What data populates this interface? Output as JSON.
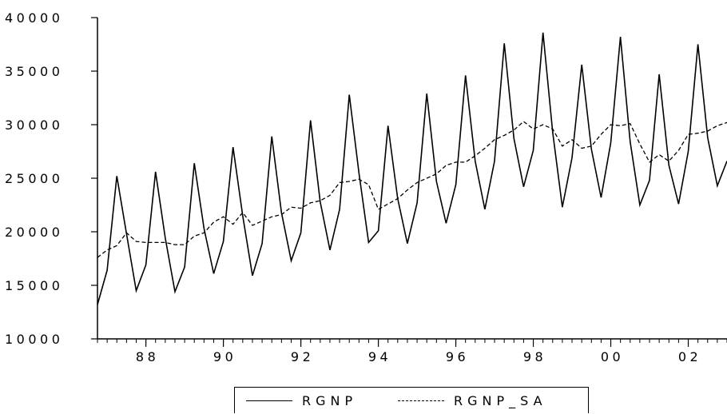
{
  "chart_data": {
    "type": "line",
    "title": "",
    "xlabel": "",
    "ylabel": "",
    "ylim": [
      10000,
      40000
    ],
    "yticks": [
      10000,
      15000,
      20000,
      25000,
      30000,
      35000,
      40000
    ],
    "ytick_labels": [
      "10000",
      "15000",
      "20000",
      "25000",
      "30000",
      "35000",
      "40000"
    ],
    "x_start": 1986.75,
    "x_step": 0.25,
    "xlim": [
      1986.75,
      2003.0
    ],
    "xtick_positions": [
      1988,
      1990,
      1992,
      1994,
      1996,
      1998,
      2000,
      2002
    ],
    "xtick_labels": [
      "88",
      "90",
      "92",
      "94",
      "96",
      "98",
      "00",
      "02"
    ],
    "legend_position": "bottom-center",
    "grid": false,
    "series": [
      {
        "name": "RGNP",
        "style": "solid",
        "color": "#000000",
        "values": [
          13200,
          16400,
          25200,
          19800,
          14500,
          16900,
          25600,
          19400,
          14400,
          16700,
          26400,
          20300,
          16100,
          19100,
          27900,
          21500,
          15900,
          18900,
          28900,
          21800,
          17300,
          19900,
          30400,
          22800,
          18300,
          22100,
          32800,
          25500,
          19000,
          20100,
          29900,
          23100,
          18900,
          22700,
          32900,
          24700,
          20800,
          24400,
          34600,
          26600,
          22100,
          26600,
          37600,
          28700,
          24200,
          27600,
          38600,
          29300,
          22300,
          26900,
          35600,
          27700,
          23200,
          28300,
          38200,
          28400,
          22500,
          24800,
          34700,
          26200,
          22600,
          27500,
          37500,
          28800,
          24300,
          26600
        ]
      },
      {
        "name": "RGNP_SA",
        "style": "dashed",
        "color": "#000000",
        "values": [
          17600,
          18300,
          18700,
          19900,
          19100,
          19000,
          19000,
          19000,
          18800,
          18800,
          19600,
          19900,
          20900,
          21400,
          20700,
          21800,
          20600,
          21000,
          21400,
          21600,
          22300,
          22200,
          22700,
          22900,
          23400,
          24600,
          24700,
          24900,
          24400,
          22100,
          22600,
          23100,
          23900,
          24600,
          25000,
          25400,
          26200,
          26500,
          26500,
          27100,
          27800,
          28600,
          29000,
          29500,
          30300,
          29600,
          30000,
          29600,
          28000,
          28600,
          27800,
          28000,
          29100,
          30000,
          29900,
          30100,
          28200,
          26500,
          27200,
          26600,
          27600,
          29100,
          29200,
          29400,
          29900,
          30200
        ]
      }
    ]
  }
}
